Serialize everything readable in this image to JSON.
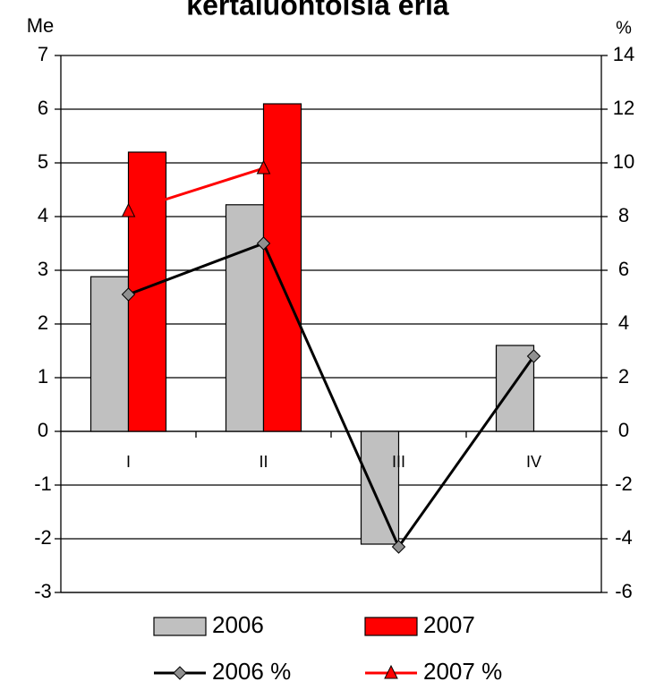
{
  "chart_data": {
    "type": "bar",
    "title": "kertaluontoisia eriä",
    "y_label": "Me",
    "y2_label": "%",
    "categories": [
      "I",
      "II",
      "III",
      "IV"
    ],
    "series": [
      {
        "name": "2006",
        "type": "bar",
        "color": "#c0c0c0",
        "values": [
          2.88,
          4.22,
          -2.1,
          1.6
        ]
      },
      {
        "name": "2007",
        "type": "bar",
        "color": "#ff0000",
        "values": [
          5.2,
          6.1,
          null,
          null
        ]
      },
      {
        "name": "2006 %",
        "type": "line",
        "axis": "y2",
        "color": "#000000",
        "marker": "diamond",
        "values": [
          5.1,
          7.0,
          -4.3,
          2.8
        ]
      },
      {
        "name": "2007 %",
        "type": "line",
        "axis": "y2",
        "color": "#ff0000",
        "marker": "triangle",
        "values": [
          8.2,
          9.8,
          null,
          null
        ]
      }
    ],
    "ylim": [
      -3,
      7
    ],
    "yticks": [
      -3,
      -2,
      -1,
      0,
      1,
      2,
      3,
      4,
      5,
      6,
      7
    ],
    "y2lim": [
      -6,
      14
    ],
    "y2ticks": [
      -6,
      -4,
      -2,
      0,
      2,
      4,
      6,
      8,
      10,
      12,
      14
    ],
    "grid": true,
    "legend": "bottom"
  }
}
